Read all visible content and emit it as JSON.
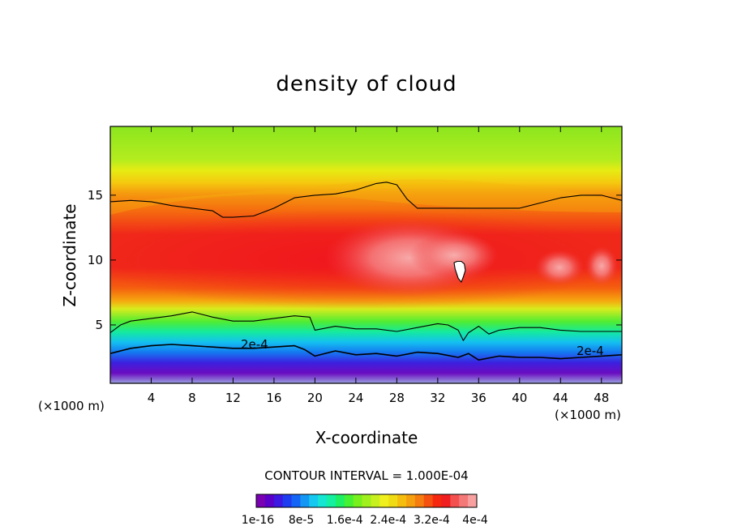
{
  "chart_data": {
    "type": "heatmap",
    "title": "density of cloud",
    "xlabel": "X-coordinate",
    "ylabel": "Z-coordinate",
    "x_unit": "(×1000 m)",
    "x_ticks": [
      4,
      8,
      12,
      16,
      20,
      24,
      28,
      32,
      36,
      40,
      44,
      48
    ],
    "y_ticks": [
      5,
      10,
      15
    ],
    "xlim": [
      0,
      50
    ],
    "ylim": [
      0.5,
      20.3
    ],
    "contour_interval_text": "CONTOUR INTERVAL = 1.000E-04",
    "contour_label": "2e-4",
    "colorbar": {
      "tick_labels": [
        "1e-16",
        "8e-5",
        "1.6e-4",
        "2.4e-4",
        "3.2e-4",
        "4e-4"
      ],
      "colors": [
        "#7a00b4",
        "#5a00c8",
        "#3c18e0",
        "#1e3cf0",
        "#1464f5",
        "#1496f5",
        "#14c8f0",
        "#14e6d2",
        "#14f0a0",
        "#1ef064",
        "#46f032",
        "#78f01e",
        "#a0f01e",
        "#c8f01e",
        "#f0f01e",
        "#f0dc14",
        "#f5be0f",
        "#f5a00f",
        "#f57d0f",
        "#f5500f",
        "#f5280f",
        "#f01e1e",
        "#f55050",
        "#f57878",
        "#f8a0a0"
      ]
    },
    "series": [
      {
        "name": "2e-4",
        "x": [
          0,
          2,
          4,
          6,
          8,
          10,
          12,
          14,
          16,
          18,
          19,
          20,
          22,
          24,
          26,
          28,
          30,
          32,
          34,
          35,
          36,
          38,
          40,
          42,
          44,
          46,
          48,
          50
        ],
        "z": [
          2.8,
          3.2,
          3.4,
          3.5,
          3.4,
          3.3,
          3.2,
          3.2,
          3.3,
          3.4,
          3.1,
          2.6,
          3.0,
          2.7,
          2.8,
          2.6,
          2.9,
          2.8,
          2.5,
          2.8,
          2.3,
          2.6,
          2.5,
          2.5,
          2.4,
          2.5,
          2.6,
          2.7
        ]
      },
      {
        "name": "upper",
        "x": [
          0,
          2,
          4,
          6,
          8,
          10,
          11,
          12,
          14,
          16,
          18,
          20,
          22,
          24,
          26,
          27,
          28,
          29,
          30,
          32,
          34,
          36,
          38,
          40,
          42,
          44,
          46,
          48,
          50
        ],
        "z": [
          14.5,
          14.6,
          14.5,
          14.2,
          14.0,
          13.8,
          13.3,
          13.3,
          13.4,
          14.0,
          14.8,
          15.0,
          15.1,
          15.4,
          15.9,
          16.0,
          15.8,
          14.7,
          14.0,
          14.0,
          14.0,
          14.0,
          14.0,
          14.0,
          14.4,
          14.8,
          15.0,
          15.0,
          14.6
        ]
      },
      {
        "name": "lower",
        "x": [
          0,
          1,
          2,
          4,
          6,
          8,
          10,
          12,
          14,
          16,
          18,
          19.5,
          20,
          22,
          24,
          26,
          28,
          30,
          32,
          33,
          34,
          34.5,
          35,
          36,
          37,
          38,
          40,
          42,
          44,
          46,
          48,
          50
        ],
        "z": [
          4.4,
          5.0,
          5.3,
          5.5,
          5.7,
          6.0,
          5.6,
          5.3,
          5.3,
          5.5,
          5.7,
          5.6,
          4.6,
          4.9,
          4.7,
          4.7,
          4.5,
          4.8,
          5.1,
          5.0,
          4.6,
          3.8,
          4.4,
          4.9,
          4.3,
          4.6,
          4.8,
          4.8,
          4.6,
          4.5,
          4.5,
          4.5
        ]
      },
      {
        "name": "island",
        "x": [
          33.6,
          33.9,
          34.3,
          34.6,
          34.7,
          34.5,
          34.3,
          34.0,
          33.7
        ],
        "z": [
          9.8,
          9.9,
          9.9,
          9.7,
          9.2,
          8.7,
          8.3,
          8.6,
          9.3
        ]
      }
    ]
  }
}
